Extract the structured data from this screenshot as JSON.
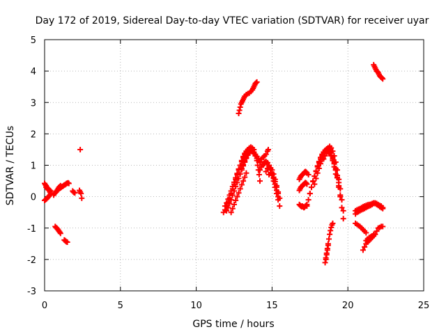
{
  "chart_data": {
    "type": "scatter",
    "title": "Day 172 of 2019, Sidereal Day-to-day VTEC variation (SDTVAR) for receiver uyar",
    "xlabel": "GPS time / hours",
    "ylabel": "SDTVAR / TECUs",
    "xlim": [
      0,
      25
    ],
    "ylim": [
      -3,
      5
    ],
    "xticks": [
      0,
      5,
      10,
      15,
      20,
      25
    ],
    "yticks": [
      -3,
      -2,
      -1,
      0,
      1,
      2,
      3,
      4,
      5
    ],
    "grid": true,
    "marker": "+",
    "color": "#ff0000",
    "segments": [
      {
        "name": "early-1",
        "x": [
          0.0,
          0.05,
          0.1,
          0.15,
          0.2,
          0.25,
          0.3,
          0.35,
          0.4
        ],
        "y": [
          -0.12,
          -0.1,
          -0.08,
          -0.06,
          -0.03,
          0.0,
          0.02,
          0.05,
          0.08
        ]
      },
      {
        "name": "early-2",
        "x": [
          0.0,
          0.05,
          0.1,
          0.15,
          0.2,
          0.25,
          0.3,
          0.35,
          0.4
        ],
        "y": [
          0.42,
          0.38,
          0.35,
          0.3,
          0.27,
          0.25,
          0.22,
          0.2,
          0.18
        ]
      },
      {
        "name": "early-3",
        "x": [
          0.1,
          0.15,
          0.2,
          0.25,
          0.3,
          0.35,
          0.4
        ],
        "y": [
          0.3,
          0.28,
          0.25,
          0.22,
          0.2,
          0.15,
          0.1
        ]
      },
      {
        "name": "early-4",
        "x": [
          0.6,
          0.65,
          0.7,
          0.75,
          0.8,
          0.85,
          0.9,
          0.95,
          1.0,
          1.05,
          1.1,
          1.15,
          1.2,
          1.25,
          1.3,
          1.35,
          1.4,
          1.45,
          1.5,
          1.55,
          1.6
        ],
        "y": [
          0.05,
          0.1,
          0.12,
          0.15,
          0.18,
          0.2,
          0.22,
          0.25,
          0.27,
          0.28,
          0.3,
          0.32,
          0.33,
          0.35,
          0.37,
          0.38,
          0.4,
          0.42,
          0.43,
          0.44,
          0.42
        ]
      },
      {
        "name": "early-5",
        "x": [
          0.8,
          0.85,
          0.9,
          0.95,
          1.0,
          1.05
        ],
        "y": [
          0.18,
          0.22,
          0.26,
          0.3,
          0.32,
          0.35
        ]
      },
      {
        "name": "early-6",
        "x": [
          0.7,
          0.75,
          0.8,
          0.85,
          0.9,
          0.95,
          1.0,
          1.05
        ],
        "y": [
          -0.95,
          -0.98,
          -1.0,
          -1.03,
          -1.06,
          -1.1,
          -1.13,
          -1.17
        ]
      },
      {
        "name": "early-7",
        "x": [
          1.3,
          1.35,
          1.4,
          1.45,
          1.5
        ],
        "y": [
          -1.38,
          -1.4,
          -1.42,
          -1.44,
          -1.45
        ]
      },
      {
        "name": "early-8",
        "x": [
          1.85,
          1.9,
          1.95,
          2.0
        ],
        "y": [
          0.18,
          0.15,
          0.13,
          0.12
        ]
      },
      {
        "name": "early-9",
        "x": [
          2.3,
          2.35,
          2.4,
          2.45
        ],
        "y": [
          0.2,
          0.15,
          0.1,
          -0.05
        ]
      },
      {
        "name": "early-10",
        "x": [
          2.35
        ],
        "y": [
          1.5
        ]
      },
      {
        "name": "high-1",
        "x": [
          12.8,
          12.85,
          12.9,
          12.95,
          13.0,
          13.05,
          13.1,
          13.15,
          13.2,
          13.3,
          13.4,
          13.5,
          13.6,
          13.7,
          13.75,
          13.8,
          13.85,
          13.9,
          13.95,
          14.0
        ],
        "y": [
          2.65,
          2.75,
          2.85,
          2.95,
          3.0,
          3.05,
          3.1,
          3.15,
          3.2,
          3.25,
          3.28,
          3.3,
          3.35,
          3.4,
          3.45,
          3.5,
          3.55,
          3.6,
          3.63,
          3.65
        ]
      },
      {
        "name": "arc-a1",
        "x": [
          11.8,
          11.9,
          12.0,
          12.1,
          12.2,
          12.3,
          12.4,
          12.5,
          12.6,
          12.7,
          12.8,
          12.9,
          13.0,
          13.1,
          13.2,
          13.3,
          13.4,
          13.5,
          13.6,
          13.7,
          13.8,
          13.9
        ],
        "y": [
          -0.5,
          -0.42,
          -0.3,
          -0.18,
          -0.05,
          0.1,
          0.25,
          0.4,
          0.55,
          0.7,
          0.85,
          1.0,
          1.15,
          1.28,
          1.38,
          1.45,
          1.5,
          1.52,
          1.5,
          1.46,
          1.38,
          1.3
        ]
      },
      {
        "name": "arc-a2",
        "x": [
          11.9,
          12.0,
          12.1,
          12.2,
          12.3,
          12.4,
          12.5,
          12.6,
          12.7,
          12.8,
          12.9,
          13.0,
          13.1,
          13.2,
          13.3,
          13.4,
          13.5,
          13.6,
          13.7,
          13.8
        ],
        "y": [
          -0.3,
          -0.2,
          -0.08,
          0.05,
          0.18,
          0.32,
          0.46,
          0.6,
          0.74,
          0.88,
          1.0,
          1.12,
          1.24,
          1.34,
          1.42,
          1.48,
          1.55,
          1.58,
          1.55,
          1.5
        ]
      },
      {
        "name": "arc-a3",
        "x": [
          12.0,
          12.1,
          12.2,
          12.3,
          12.4,
          12.5,
          12.6,
          12.7,
          12.8,
          12.9,
          13.0,
          13.1,
          13.2,
          13.3,
          13.4,
          13.5,
          13.6
        ],
        "y": [
          -0.45,
          -0.35,
          -0.22,
          -0.1,
          0.05,
          0.18,
          0.32,
          0.45,
          0.58,
          0.72,
          0.85,
          0.98,
          1.1,
          1.22,
          1.32,
          1.4,
          1.45
        ]
      },
      {
        "name": "arc-a4",
        "x": [
          12.3,
          12.4,
          12.5,
          12.6,
          12.7,
          12.8,
          12.9,
          13.0,
          13.1,
          13.2,
          13.3
        ],
        "y": [
          -0.5,
          -0.38,
          -0.25,
          -0.12,
          0.0,
          0.12,
          0.25,
          0.38,
          0.5,
          0.62,
          0.75
        ]
      },
      {
        "name": "arc-a5",
        "x": [
          13.0,
          13.1,
          13.2,
          13.3,
          13.4,
          13.5,
          13.6,
          13.7,
          13.8,
          13.9,
          14.0,
          14.1,
          14.2
        ],
        "y": [
          0.9,
          1.02,
          1.14,
          1.25,
          1.35,
          1.42,
          1.45,
          1.43,
          1.38,
          1.3,
          1.22,
          1.15,
          1.1
        ]
      },
      {
        "name": "arc-a6",
        "x": [
          13.2,
          13.3,
          13.4,
          13.5,
          13.6,
          13.7,
          13.8,
          13.9,
          14.0,
          14.1
        ],
        "y": [
          1.2,
          1.3,
          1.38,
          1.44,
          1.5,
          1.48,
          1.42,
          1.35,
          1.28,
          1.22
        ]
      },
      {
        "name": "mid-1",
        "x": [
          14.0,
          14.05,
          14.1,
          14.15,
          14.2
        ],
        "y": [
          1.15,
          1.0,
          0.85,
          0.7,
          0.5
        ]
      },
      {
        "name": "mid-2",
        "x": [
          14.3,
          14.4,
          14.5,
          14.6,
          14.7,
          14.75
        ],
        "y": [
          1.2,
          1.25,
          1.3,
          1.35,
          1.45,
          1.5
        ]
      },
      {
        "name": "arc-b1",
        "x": [
          14.2,
          14.3,
          14.4,
          14.5,
          14.6,
          14.7,
          14.8,
          14.9,
          15.0,
          15.1,
          15.2,
          15.3,
          15.4,
          15.5
        ],
        "y": [
          0.85,
          0.95,
          1.05,
          1.1,
          1.12,
          1.08,
          1.0,
          0.85,
          0.68,
          0.5,
          0.3,
          0.1,
          -0.1,
          -0.3
        ]
      },
      {
        "name": "arc-b2",
        "x": [
          14.4,
          14.5,
          14.6,
          14.7,
          14.8,
          14.9,
          15.0,
          15.1,
          15.2,
          15.3,
          15.4
        ],
        "y": [
          1.0,
          1.05,
          1.1,
          1.08,
          1.0,
          0.9,
          0.75,
          0.58,
          0.4,
          0.2,
          0.0
        ]
      },
      {
        "name": "arc-b3",
        "x": [
          14.6,
          14.7,
          14.8,
          14.9,
          15.0,
          15.1,
          15.2,
          15.3,
          15.4,
          15.5
        ],
        "y": [
          0.8,
          0.9,
          0.95,
          0.92,
          0.85,
          0.72,
          0.55,
          0.35,
          0.15,
          -0.05
        ]
      },
      {
        "name": "arc-b4",
        "x": [
          14.8,
          14.9,
          15.0,
          15.1,
          15.2,
          15.3,
          15.4
        ],
        "y": [
          0.7,
          0.75,
          0.72,
          0.62,
          0.48,
          0.3,
          0.1
        ]
      },
      {
        "name": "arc-c1",
        "x": [
          16.8,
          16.85,
          16.9,
          16.95,
          17.0,
          17.05,
          17.1,
          17.15,
          17.2,
          17.25,
          17.3,
          17.4
        ],
        "y": [
          0.55,
          0.6,
          0.65,
          0.68,
          0.7,
          0.72,
          0.75,
          0.78,
          0.8,
          0.78,
          0.75,
          0.7
        ]
      },
      {
        "name": "arc-c2",
        "x": [
          16.8,
          16.85,
          16.9,
          16.95,
          17.0,
          17.05,
          17.1,
          17.15,
          17.2,
          17.25,
          17.3
        ],
        "y": [
          0.2,
          0.25,
          0.3,
          0.32,
          0.35,
          0.38,
          0.4,
          0.42,
          0.45,
          0.43,
          0.4
        ]
      },
      {
        "name": "arc-c3",
        "x": [
          16.8,
          16.85,
          16.9,
          16.95,
          17.0,
          17.05,
          17.1,
          17.15,
          17.2,
          17.25,
          17.3
        ],
        "y": [
          -0.25,
          -0.28,
          -0.3,
          -0.32,
          -0.3,
          -0.32,
          -0.35,
          -0.33,
          -0.3,
          -0.28,
          -0.25
        ]
      },
      {
        "name": "arc-d1",
        "x": [
          17.3,
          17.4,
          17.5,
          17.6,
          17.7,
          17.8,
          17.9,
          18.0,
          18.1,
          18.2,
          18.3,
          18.4,
          18.5,
          18.6,
          18.7,
          18.8,
          18.9,
          19.0,
          19.1,
          19.2
        ],
        "y": [
          -0.3,
          -0.1,
          0.1,
          0.3,
          0.48,
          0.65,
          0.82,
          0.98,
          1.12,
          1.25,
          1.35,
          1.42,
          1.48,
          1.52,
          1.5,
          1.42,
          1.3,
          1.15,
          0.95,
          0.72
        ]
      },
      {
        "name": "arc-d2",
        "x": [
          17.5,
          17.6,
          17.7,
          17.8,
          17.9,
          18.0,
          18.1,
          18.2,
          18.3,
          18.4,
          18.5,
          18.6,
          18.7,
          18.8,
          18.9,
          19.0,
          19.1,
          19.2,
          19.3,
          19.4
        ],
        "y": [
          0.1,
          0.3,
          0.5,
          0.65,
          0.8,
          0.95,
          1.08,
          1.2,
          1.3,
          1.38,
          1.45,
          1.5,
          1.55,
          1.5,
          1.4,
          1.25,
          1.1,
          0.9,
          0.68,
          0.45
        ]
      },
      {
        "name": "arc-d3",
        "x": [
          17.8,
          17.9,
          18.0,
          18.1,
          18.2,
          18.3,
          18.4,
          18.5,
          18.6,
          18.7,
          18.8,
          18.9,
          19.0,
          19.1,
          19.2,
          19.3,
          19.4,
          19.5,
          19.6,
          19.7
        ],
        "y": [
          0.4,
          0.58,
          0.75,
          0.9,
          1.05,
          1.18,
          1.3,
          1.4,
          1.48,
          1.55,
          1.6,
          1.55,
          1.45,
          1.3,
          1.1,
          0.85,
          0.55,
          0.25,
          -0.1,
          -0.45
        ]
      },
      {
        "name": "arc-d4",
        "x": [
          18.6,
          18.7,
          18.8,
          18.9,
          19.0,
          19.1,
          19.2,
          19.3,
          19.4,
          19.5,
          19.6,
          19.7
        ],
        "y": [
          1.5,
          1.48,
          1.42,
          1.32,
          1.2,
          1.05,
          0.85,
          0.6,
          0.3,
          0.0,
          -0.35,
          -0.7
        ]
      },
      {
        "name": "arc-d5",
        "x": [
          18.4,
          18.5,
          18.6,
          18.7,
          18.8,
          18.9,
          19.0,
          19.1,
          19.2,
          19.3,
          19.4,
          19.5
        ],
        "y": [
          1.2,
          1.3,
          1.38,
          1.42,
          1.4,
          1.32,
          1.2,
          1.05,
          0.85,
          0.62,
          0.35,
          0.05
        ]
      },
      {
        "name": "low-1",
        "x": [
          18.5,
          18.55,
          18.6,
          18.65,
          18.7,
          18.75,
          18.8,
          18.85,
          18.9,
          18.95,
          19.0
        ],
        "y": [
          -2.1,
          -1.95,
          -1.8,
          -1.65,
          -1.5,
          -1.35,
          -1.2,
          -1.08,
          -0.98,
          -0.9,
          -0.85
        ]
      },
      {
        "name": "low-2",
        "x": [
          18.55,
          18.6,
          18.65,
          18.7
        ],
        "y": [
          -2.0,
          -1.85,
          -1.7,
          -1.55
        ]
      },
      {
        "name": "late-1",
        "x": [
          20.5,
          20.6,
          20.7,
          20.8,
          20.9,
          21.0,
          21.1,
          21.2,
          21.3,
          21.4,
          21.5,
          21.6,
          21.7,
          21.8,
          21.9,
          22.0,
          22.1,
          22.2,
          22.3
        ],
        "y": [
          -0.55,
          -0.5,
          -0.48,
          -0.45,
          -0.42,
          -0.4,
          -0.38,
          -0.35,
          -0.32,
          -0.3,
          -0.28,
          -0.25,
          -0.22,
          -0.22,
          -0.25,
          -0.28,
          -0.32,
          -0.35,
          -0.38
        ]
      },
      {
        "name": "late-2",
        "x": [
          20.5,
          20.6,
          20.7,
          20.8,
          20.9,
          21.0,
          21.1,
          21.2,
          21.3,
          21.4,
          21.5,
          21.6,
          21.7,
          21.8,
          21.9,
          22.0,
          22.1,
          22.2,
          22.3
        ],
        "y": [
          -0.45,
          -0.42,
          -0.4,
          -0.38,
          -0.35,
          -0.32,
          -0.3,
          -0.28,
          -0.26,
          -0.25,
          -0.24,
          -0.22,
          -0.2,
          -0.2,
          -0.22,
          -0.25,
          -0.28,
          -0.3,
          -0.35
        ]
      },
      {
        "name": "late-3",
        "x": [
          20.5,
          20.6,
          20.7,
          20.8,
          20.9,
          21.0,
          21.1,
          21.2
        ],
        "y": [
          -0.85,
          -0.88,
          -0.92,
          -0.95,
          -1.0,
          -1.05,
          -1.1,
          -1.15
        ]
      },
      {
        "name": "late-4",
        "x": [
          21.0,
          21.1,
          21.2,
          21.3,
          21.4,
          21.5,
          21.6,
          21.7,
          21.8,
          21.9,
          22.0,
          22.1,
          22.2,
          22.3
        ],
        "y": [
          -1.7,
          -1.6,
          -1.5,
          -1.45,
          -1.4,
          -1.35,
          -1.3,
          -1.25,
          -1.2,
          -1.1,
          -1.0,
          -0.98,
          -0.95,
          -0.95
        ]
      },
      {
        "name": "late-5",
        "x": [
          21.2,
          21.3,
          21.4,
          21.5,
          21.6,
          21.7
        ],
        "y": [
          -1.4,
          -1.35,
          -1.3,
          -1.28,
          -1.25,
          -1.2
        ]
      },
      {
        "name": "late-6",
        "x": [
          21.7,
          21.75,
          21.8,
          21.85,
          21.9,
          21.95,
          22.0,
          22.05,
          22.1,
          22.15,
          22.2,
          22.25,
          22.3
        ],
        "y": [
          4.2,
          4.15,
          4.1,
          4.05,
          4.0,
          3.98,
          3.95,
          3.9,
          3.85,
          3.82,
          3.8,
          3.78,
          3.75
        ]
      }
    ]
  }
}
